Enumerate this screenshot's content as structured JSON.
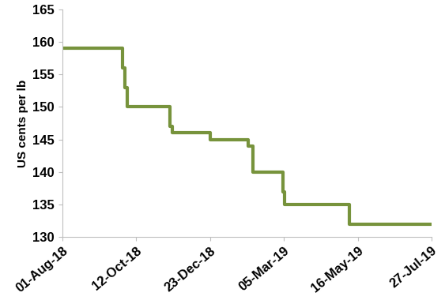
{
  "chart_data": {
    "type": "line",
    "y_label": "US cents per lb",
    "x": [
      "2018-08-01",
      "2018-09-27",
      "2018-09-29",
      "2018-10-01",
      "2018-10-03",
      "2018-11-12",
      "2018-11-14",
      "2018-11-16",
      "2018-12-23",
      "2019-01-29",
      "2019-02-03",
      "2019-03-04",
      "2019-03-06",
      "2019-05-08",
      "2019-07-27"
    ],
    "values": [
      159,
      159,
      156,
      153,
      150,
      150,
      147,
      146,
      145,
      144,
      140,
      137,
      135,
      132,
      132
    ],
    "color": "#77933c",
    "line_style": "steps",
    "xlim": [
      "2018-08-01",
      "2019-07-27"
    ],
    "xticks": [
      {
        "value": "2018-08-01",
        "label": "01-Aug-18"
      },
      {
        "value": "2018-10-12",
        "label": "12-Oct-18"
      },
      {
        "value": "2018-12-23",
        "label": "23-Dec-18"
      },
      {
        "value": "2019-03-05",
        "label": "05-Mar-19"
      },
      {
        "value": "2019-05-16",
        "label": "16-May-19"
      },
      {
        "value": "2019-07-27",
        "label": "27-Jul-19"
      }
    ],
    "ylim": [
      130,
      165
    ],
    "yticks": [
      130,
      135,
      140,
      145,
      150,
      155,
      160,
      165
    ],
    "grid": false
  }
}
